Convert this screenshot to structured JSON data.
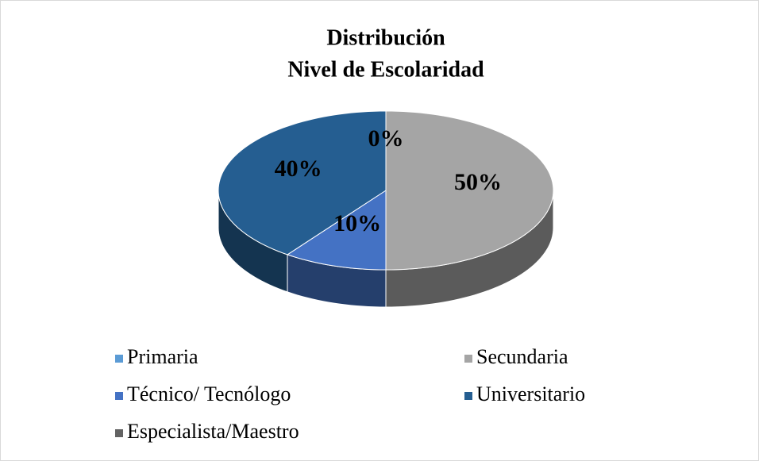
{
  "chart_data": {
    "type": "pie",
    "title": "Distribución",
    "subtitle": "Nivel de Escolaridad",
    "categories": [
      "Primaria",
      "Secundaria",
      "Técnico/ Tecnólogo",
      "Universitario",
      "Especialista/Maestro"
    ],
    "values": [
      0,
      50,
      10,
      40,
      0
    ],
    "value_labels": [
      "0%",
      "50%",
      "10%",
      "40%",
      null
    ],
    "colors": [
      "#5b9bd5",
      "#a5a5a5",
      "#4472c4",
      "#255e91",
      "#636363"
    ],
    "legend": "bottom"
  }
}
